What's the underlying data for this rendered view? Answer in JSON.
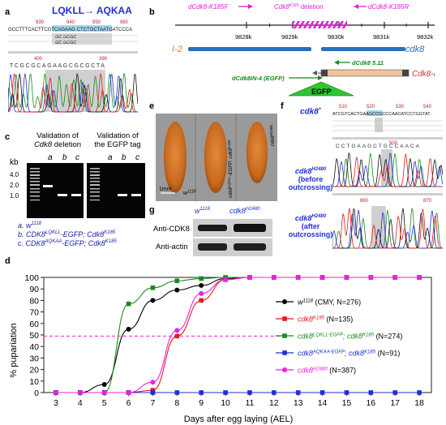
{
  "panels": [
    "a",
    "b",
    "c",
    "d",
    "e",
    "f",
    "g"
  ],
  "a": {
    "mutation_label": "LQKLL→ AQKAA",
    "ruler_top": [
      "930",
      "940",
      "950",
      "960"
    ],
    "ruler_bottom": [
      "400",
      "390"
    ],
    "seq_ref": "GCCTTTCACTTCGTCAGAAG·CTCTGCTAATGATCCCA",
    "seq_row1": "GC          GCGC",
    "seq_row2": "GC          GCGC",
    "trace_seq": "TCGCGCAGAAGCGCGCTA"
  },
  "b": {
    "positions": [
      "9828k",
      "9829k",
      "9830k",
      "9831k",
      "9832k"
    ],
    "primer_f": "dCdk8-K185F",
    "primer_r": "dCdk8-K185R",
    "deletion_label_prefix": "Cdk8",
    "deletion_label_sup": "K185",
    "deletion_label_suffix": " deletion",
    "gene_left": "I-2",
    "gene_right": "cdk8",
    "construct1": "dCdk8 5.11",
    "construct2": "dCdk8IN-4 (EGFP)",
    "egfp": "EGFP",
    "transcript": "Cdk8-RA"
  },
  "c": {
    "title1_l1": "Validation of",
    "title1_l2a": "Cdk8",
    "title1_l2b": " deletion",
    "title2_l1": "Validation of",
    "title2_l2": "the EGFP tag",
    "kb": "kb",
    "ladder": [
      "4.0",
      "2.0",
      "1.0"
    ],
    "lanes": [
      "a",
      "b",
      "c"
    ],
    "legend": [
      {
        "key": "a.",
        "geno": "w",
        "sup": "1118",
        "rest": ""
      },
      {
        "key": "b.",
        "geno": "CDK8",
        "sup": "LQKLL",
        "rest": "-EGFP; Cdk8",
        "sup2": "K185"
      },
      {
        "key": "c.",
        "geno": "CDK8",
        "sup": "AQKAA",
        "rest": "-EGFP; Cdk8",
        "sup2": "K185"
      }
    ]
  },
  "e": {
    "scale": "1mm",
    "labels": [
      {
        "geno": "w",
        "sup": "1118"
      },
      {
        "geno": "cdk8",
        "sup": "LQKLL",
        "rest": "-EGFP; cdk8",
        "sup2": "K185"
      },
      {
        "geno": "cdk8",
        "sup": "H2480"
      }
    ]
  },
  "f": {
    "label1": "cdk8",
    "label1_sup": "+",
    "ruler1": [
      "510",
      "520",
      "530",
      "540"
    ],
    "seq1": "ATCGTCACTGAAGCCGCCCAACATCCTGGTAT",
    "trace1_seq": "CCTGAAGCTGCCAACA",
    "ruler2": [
      "500"
    ],
    "label2": "cdk8",
    "label2_sup": "H2480",
    "label2_note1": "(before",
    "label2_note2": "outcrossing)",
    "ruler3": [
      "860",
      "870"
    ],
    "label3": "cdk8",
    "label3_sup": "H2480",
    "label3_note1": "(after",
    "label3_note2": "outcrossing)"
  },
  "g": {
    "col1": "w",
    "col1_sup": "1118",
    "col2": "cdk8",
    "col2_sup": "H2480",
    "row1": "Anti-CDK8",
    "row2": "Anti-actin"
  },
  "chart_data": {
    "type": "line",
    "ylabel": "% pupariation",
    "xlabel": "Days after egg laying (AEL)",
    "xlim": [
      2.5,
      18.5
    ],
    "ylim": [
      0,
      100
    ],
    "x_ticks": [
      3,
      4,
      5,
      6,
      7,
      8,
      9,
      10,
      11,
      12,
      13,
      14,
      15,
      16,
      17,
      18
    ],
    "y_ticks": [
      0,
      10,
      20,
      30,
      40,
      50,
      60,
      70,
      80,
      90,
      100
    ],
    "reference_line_y": 49,
    "legend_placement": "right",
    "series": [
      {
        "name_geno": "w",
        "name_sup": "1118",
        "name_rest": " (CMY, N=276)",
        "color": "#000000",
        "marker": "circle",
        "x": [
          3,
          4,
          5,
          6,
          7,
          8,
          9,
          10,
          11,
          12,
          13,
          14,
          15,
          16,
          17,
          18
        ],
        "y": [
          0,
          0,
          7,
          55,
          80,
          89,
          93,
          99,
          100,
          100,
          100,
          100,
          100,
          100,
          100,
          100
        ]
      },
      {
        "name_geno": "cdk8",
        "name_sup": "K185",
        "name_rest": " (N=135)",
        "color": "#e8191b",
        "marker": "square",
        "x": [
          3,
          4,
          5,
          6,
          7,
          8,
          9,
          10,
          11,
          12,
          13,
          14,
          15,
          16,
          17,
          18
        ],
        "y": [
          0,
          0,
          0,
          0,
          2,
          49,
          80,
          98,
          100,
          100,
          100,
          100,
          100,
          100,
          100,
          100
        ]
      },
      {
        "name_geno": "cdk8",
        "name_sup": "LQKLL-EGFP",
        "name_rest": "; cdk8",
        "name_sup2": "K185",
        "name_rest2": " (N=274)",
        "color": "#1a8a1f",
        "marker": "square",
        "x": [
          3,
          4,
          5,
          6,
          7,
          8,
          9,
          10,
          11,
          12,
          13,
          14,
          15,
          16,
          17,
          18
        ],
        "y": [
          0,
          0,
          0,
          77,
          91,
          97,
          99,
          100,
          100,
          100,
          100,
          100,
          100,
          100,
          100,
          100
        ]
      },
      {
        "name_geno": "cdk8",
        "name_sup": "AQKAA-EGFP",
        "name_rest": "; cdk8",
        "name_sup2": "K185",
        "name_rest2": " (N=91)",
        "color": "#1f2fd6",
        "marker": "square",
        "x": [
          3,
          4,
          5,
          6,
          7,
          8,
          9,
          10,
          11,
          12,
          13,
          14,
          15,
          16,
          17,
          18
        ],
        "y": [
          0,
          0,
          0,
          0,
          0,
          0,
          0,
          0,
          0,
          0,
          0,
          0,
          0,
          0,
          0,
          0
        ]
      },
      {
        "name_geno": "cdk8",
        "name_sup": "H2480",
        "name_rest": " (N=387)",
        "color": "#f01fe0",
        "marker": "circle",
        "x": [
          3,
          4,
          5,
          6,
          7,
          8,
          9,
          10,
          11,
          12,
          13,
          14,
          15,
          16,
          17,
          18
        ],
        "y": [
          0,
          0,
          0,
          0,
          9,
          54,
          86,
          98,
          100,
          100,
          100,
          100,
          100,
          100,
          100,
          100
        ]
      }
    ]
  }
}
